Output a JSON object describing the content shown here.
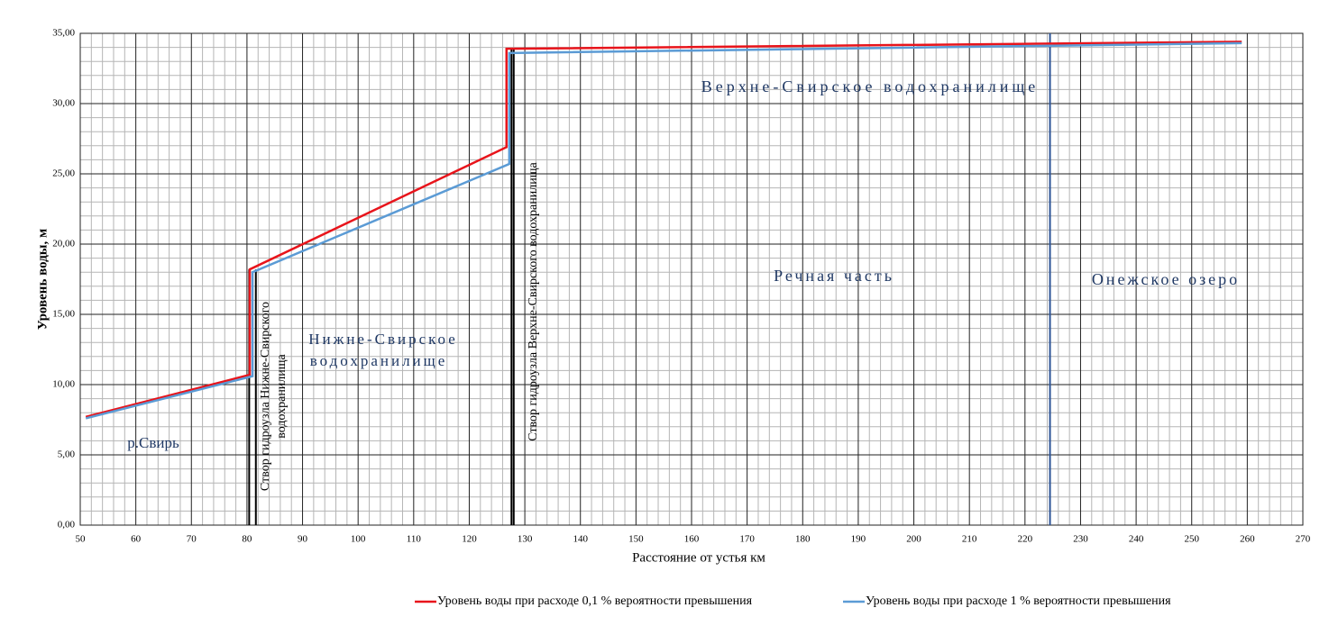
{
  "chart_data": {
    "type": "line",
    "x_label": "Расстояние от устья км",
    "y_label": "Уровень воды, м",
    "xlim": [
      50,
      270
    ],
    "xticks": [
      50,
      60,
      70,
      80,
      90,
      100,
      110,
      120,
      130,
      140,
      150,
      160,
      170,
      180,
      190,
      200,
      210,
      220,
      230,
      240,
      250,
      260,
      270
    ],
    "ylim": [
      0,
      35
    ],
    "yticks": [
      {
        "value": 0,
        "label": "0,00"
      },
      {
        "value": 5,
        "label": "5,00"
      },
      {
        "value": 10,
        "label": "10,00"
      },
      {
        "value": 15,
        "label": "15,00"
      },
      {
        "value": 20,
        "label": "20,00"
      },
      {
        "value": 25,
        "label": "25,00"
      },
      {
        "value": 30,
        "label": "30,00"
      },
      {
        "value": 35,
        "label": "35,00"
      }
    ],
    "grid": true,
    "series": [
      {
        "name": "Уровень воды при расходе 0,1 %  вероятности превышения",
        "color": "#e8141b",
        "x": [
          51,
          80.5,
          80.5,
          126.7,
          126.7,
          259
        ],
        "values": [
          7.7,
          10.7,
          18.2,
          26.9,
          33.9,
          34.4
        ]
      },
      {
        "name": "Уровень воды при расходе 1 % вероятности превышения",
        "color": "#5b9bd5",
        "x": [
          51,
          81,
          81,
          127.2,
          127.2,
          259
        ],
        "values": [
          7.6,
          10.6,
          18.0,
          25.7,
          33.6,
          34.3
        ]
      }
    ],
    "vlines": [
      {
        "x": 80.4,
        "color": "#000000"
      },
      {
        "x": 81.6,
        "color": "#000000"
      },
      {
        "x": 127.6,
        "color": "#000000"
      },
      {
        "x": 128,
        "color": "#000000"
      },
      {
        "x": 224.5,
        "color": "#2e5597"
      }
    ],
    "annotations": [
      "р.Свирь",
      "Нижне-Свирское",
      "водохранилище",
      "Створ гидроузла Нижне-Свирского",
      "водохранилища",
      "Створ гидроузла Верхне-Свирского водохранилища",
      "Верхне-Свирское  водохранилище",
      "Речная часть",
      "Онежское озеро"
    ]
  }
}
